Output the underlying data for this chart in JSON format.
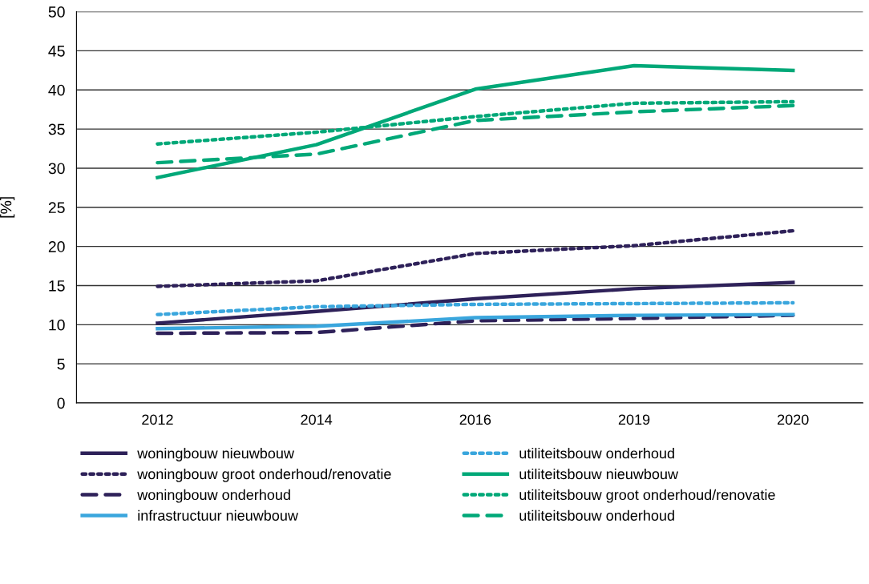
{
  "chart_data": {
    "type": "line",
    "ylabel": "[%]",
    "categories": [
      "2012",
      "2014",
      "2016",
      "2019",
      "2020"
    ],
    "ylim": [
      0,
      50
    ],
    "yticks": [
      0,
      5,
      10,
      15,
      20,
      25,
      30,
      35,
      40,
      45,
      50
    ],
    "grid": "y",
    "legend": "bottom",
    "series": [
      {
        "name": "woningbouw nieuwbouw",
        "color": "#2e2159",
        "line_style": "solid",
        "values": [
          10.2,
          11.7,
          13.3,
          14.6,
          15.4
        ]
      },
      {
        "name": "woningbouw groot onderhoud/renovatie",
        "color": "#2e2159",
        "line_style": "dotted",
        "values": [
          14.9,
          15.6,
          19.1,
          20.1,
          22.0
        ]
      },
      {
        "name": "woningbouw onderhoud",
        "color": "#2e2159",
        "line_style": "dashed",
        "values": [
          8.9,
          9.0,
          10.5,
          10.8,
          11.2
        ]
      },
      {
        "name": "infrastructuur nieuwbouw",
        "color": "#3aa6dd",
        "line_style": "solid",
        "values": [
          9.5,
          9.8,
          10.9,
          11.2,
          11.3
        ]
      },
      {
        "name": "utiliteitsbouw onderhoud",
        "color": "#3aa6dd",
        "line_style": "dotted",
        "values": [
          11.3,
          12.3,
          12.6,
          12.7,
          12.8
        ]
      },
      {
        "name": "utiliteitsbouw nieuwbouw",
        "color": "#00a878",
        "line_style": "solid",
        "values": [
          28.8,
          33.0,
          40.1,
          43.1,
          42.5
        ]
      },
      {
        "name": "utiliteitsbouw groot onderhoud/renovatie",
        "color": "#00a878",
        "line_style": "dotted",
        "values": [
          33.1,
          34.6,
          36.6,
          38.3,
          38.5
        ]
      },
      {
        "name": "utiliteitsbouw onderhoud",
        "color": "#00a878",
        "line_style": "dashed",
        "values": [
          30.7,
          31.8,
          36.1,
          37.2,
          38.0
        ]
      }
    ]
  }
}
